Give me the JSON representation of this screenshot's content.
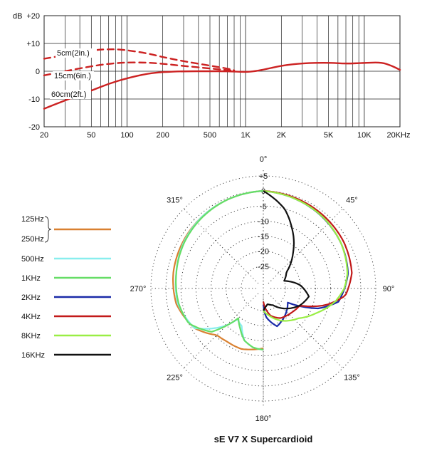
{
  "chart_data": [
    {
      "type": "line",
      "ylabel": "dB",
      "x_scale": "log",
      "xlim": [
        20,
        20000
      ],
      "ylim": [
        -20,
        20
      ],
      "grid": true,
      "x_ticks": [
        {
          "v": 20,
          "label": "20"
        },
        {
          "v": 50,
          "label": "50"
        },
        {
          "v": 100,
          "label": "100"
        },
        {
          "v": 200,
          "label": "200"
        },
        {
          "v": 500,
          "label": "500"
        },
        {
          "v": 1000,
          "label": "1K"
        },
        {
          "v": 2000,
          "label": "2K"
        },
        {
          "v": 5000,
          "label": "5K"
        },
        {
          "v": 10000,
          "label": "10K"
        },
        {
          "v": 20000,
          "label": "20KHz"
        }
      ],
      "y_ticks": [
        {
          "v": 20,
          "label": "+20"
        },
        {
          "v": 10,
          "label": "+10"
        },
        {
          "v": 0,
          "label": "0"
        },
        {
          "v": -10,
          "label": "-10"
        },
        {
          "v": -20,
          "label": "-20"
        }
      ],
      "color": "#cc2222",
      "series": [
        {
          "name": "5cm(2in.)",
          "style": "dashed",
          "x": [
            20,
            30,
            40,
            50,
            60,
            70,
            80,
            100,
            150,
            200,
            300,
            500,
            700,
            800
          ],
          "y": [
            4.5,
            5.8,
            6.8,
            7.4,
            7.8,
            7.9,
            7.9,
            7.6,
            6.4,
            5.1,
            3.6,
            2.0,
            1.0,
            0.3
          ]
        },
        {
          "name": "15cm(6in.)",
          "style": "dashed",
          "x": [
            20,
            30,
            50,
            70,
            100,
            150,
            200,
            300,
            500,
            700,
            800
          ],
          "y": [
            -1.5,
            0.0,
            1.8,
            2.7,
            3.2,
            3.1,
            2.7,
            1.9,
            1.0,
            0.4,
            0.2
          ]
        },
        {
          "name": "60cm(2ft.)",
          "style": "solid",
          "x": [
            20,
            30,
            50,
            70,
            100,
            150,
            200,
            300,
            500,
            700,
            1000,
            1200,
            1500,
            2000,
            3000,
            5000,
            7000,
            10000,
            14000,
            17000,
            20000
          ],
          "y": [
            -13.5,
            -10.5,
            -7.0,
            -4.5,
            -2.5,
            -0.8,
            -0.3,
            0.0,
            0.0,
            0.0,
            -0.3,
            0.0,
            0.8,
            2.0,
            2.9,
            3.1,
            2.7,
            3.0,
            3.2,
            2.0,
            0.5
          ]
        }
      ]
    },
    {
      "type": "polar",
      "title": "sE V7 X  Supercardioid",
      "radial_unit": "dB",
      "rlim": [
        -30,
        5
      ],
      "radial_ticks": [
        "+5",
        "0",
        "-5",
        "-10",
        "-15",
        "-20",
        "-25"
      ],
      "angle_labels": [
        {
          "deg": 0,
          "label": "0°"
        },
        {
          "deg": 45,
          "label": "45°"
        },
        {
          "deg": 90,
          "label": "90°"
        },
        {
          "deg": 135,
          "label": "135°"
        },
        {
          "deg": 180,
          "label": "180°"
        },
        {
          "deg": 225,
          "label": "225°"
        },
        {
          "deg": 270,
          "label": "270°"
        },
        {
          "deg": 315,
          "label": "315°"
        }
      ],
      "legend_brace_labels": [
        "125Hz",
        "250Hz"
      ],
      "series": [
        {
          "name": "125Hz/250Hz",
          "color": "#d98030",
          "side": "left",
          "theta": [
            0,
            20,
            40,
            60,
            80,
            100,
            120,
            135,
            145,
            160,
            170,
            180
          ],
          "r": [
            0,
            -0.5,
            -1.0,
            -1.5,
            -2.0,
            -3.0,
            -6.0,
            -10.5,
            -11.0,
            -11.0,
            -11.8,
            -12.5
          ]
        },
        {
          "name": "500Hz",
          "color": "#88eeee",
          "side": "left",
          "theta": [
            0,
            20,
            40,
            60,
            80,
            100,
            120,
            135,
            140,
            150,
            160,
            170,
            180
          ],
          "r": [
            0,
            -0.5,
            -1.0,
            -1.8,
            -3.0,
            -3.5,
            -6.0,
            -15.0,
            -19.0,
            -18.0,
            -14.0,
            -12.5,
            -12.0
          ]
        },
        {
          "name": "1KHz",
          "color": "#66dd66",
          "side": "left",
          "theta": [
            0,
            20,
            40,
            60,
            80,
            100,
            115,
            130,
            140,
            150,
            160,
            170,
            180
          ],
          "r": [
            0,
            -0.5,
            -1.2,
            -2.0,
            -3.0,
            -3.8,
            -5.0,
            -10.0,
            -19.5,
            -17.0,
            -14.0,
            -12.5,
            -12.0
          ]
        },
        {
          "name": "2KHz",
          "color": "#1a2aa8",
          "side": "right",
          "theta": [
            0,
            20,
            40,
            60,
            80,
            100,
            110,
            120,
            140,
            160,
            175,
            180
          ],
          "r": [
            0,
            -0.8,
            -1.6,
            -2.5,
            -3.8,
            -7.0,
            -13.0,
            -23.0,
            -21.0,
            -19.0,
            -23.0,
            -27.0
          ]
        },
        {
          "name": "4KHz",
          "color": "#c21a1a",
          "side": "right",
          "theta": [
            0,
            20,
            40,
            60,
            80,
            95,
            105,
            115,
            130,
            150,
            165,
            175,
            180
          ],
          "r": [
            0,
            -0.5,
            -1.0,
            -1.5,
            -2.5,
            -5.0,
            -11.0,
            -19.0,
            -20.0,
            -21.0,
            -23.0,
            -26.0,
            -28.0
          ]
        },
        {
          "name": "8KHz",
          "color": "#99ee44",
          "side": "right",
          "theta": [
            0,
            20,
            40,
            60,
            80,
            90,
            100,
            115,
            130,
            150,
            170,
            180
          ],
          "r": [
            0,
            -0.8,
            -1.5,
            -2.5,
            -4.0,
            -5.5,
            -8.0,
            -13.0,
            -17.0,
            -20.0,
            -23.5,
            -25.0
          ]
        },
        {
          "name": "16KHz",
          "color": "#111111",
          "side": "right",
          "theta": [
            0,
            15,
            25,
            40,
            55,
            70,
            85,
            100,
            115,
            130,
            150,
            165,
            175,
            180
          ],
          "r": [
            0,
            -5.0,
            -10.0,
            -17.0,
            -23.0,
            -25.0,
            -20.0,
            -17.0,
            -19.0,
            -22.0,
            -26.0,
            -27.0,
            -26.0,
            -25.0
          ]
        }
      ]
    }
  ]
}
